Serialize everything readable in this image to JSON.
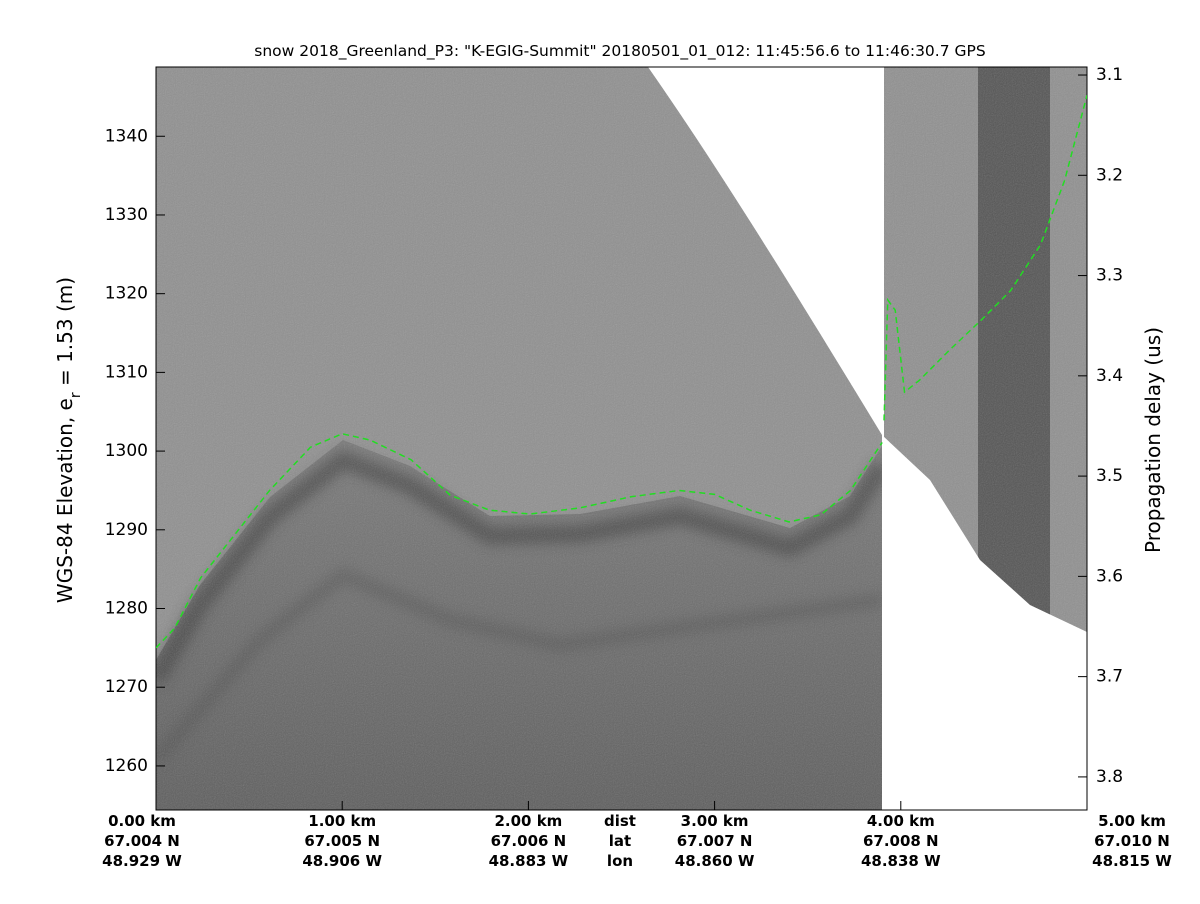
{
  "chart_data": {
    "type": "line",
    "title": "snow 2018_Greenland_P3: \"K-EGIG-Summit\"  20180501_01_012: 11:45:56.6 to 11:46:30.7 GPS",
    "ylabel_main": "WGS-84 Elevation, e",
    "ylabel_sub": "r",
    "ylabel_end": " = 1.53 (m)",
    "y2label": "Propagation delay (us)",
    "xlim": [
      0,
      5
    ],
    "xticks": [
      {
        "value": 0,
        "label": "0.00 km"
      },
      {
        "value": 1,
        "label": "1.00 km"
      },
      {
        "value": 2,
        "label": "2.00 km"
      },
      {
        "value": 3,
        "label": "3.00 km"
      },
      {
        "value": 4,
        "label": "4.00 km"
      },
      {
        "value": 5,
        "label": "5.00 km"
      }
    ],
    "lat_labels": [
      "67.004 N",
      "67.005 N",
      "67.006 N",
      "67.007 N",
      "67.008 N",
      "67.010 N"
    ],
    "lon_labels": [
      "48.929 W",
      "48.906 W",
      "48.883 W",
      "48.860 W",
      "48.838 W",
      "48.815 W"
    ],
    "row_names": [
      "dist",
      "lat",
      "lon"
    ],
    "ylim": [
      1254.4,
      1348.8
    ],
    "yticks": [
      1260,
      1270,
      1280,
      1290,
      1300,
      1310,
      1320,
      1330,
      1340
    ],
    "y2lim": [
      3.092,
      3.833
    ],
    "y2_reversed": true,
    "y2ticks": [
      3.1,
      3.2,
      3.3,
      3.4,
      3.5,
      3.6,
      3.7,
      3.8
    ],
    "x": [
      0,
      0.1,
      0.24,
      0.4,
      0.61,
      0.83,
      1.0,
      1.15,
      1.37,
      1.58,
      1.79,
      2.01,
      2.28,
      2.55,
      2.81,
      3.0,
      3.19,
      3.4,
      3.57,
      3.73,
      3.9,
      3.905,
      3.91,
      3.93,
      3.97,
      4.02,
      4.1,
      4.26,
      4.43,
      4.59,
      4.75,
      4.88,
      5.0
    ],
    "series": [
      {
        "name": "surface",
        "color": "#22dd22",
        "values": [
          1275.0,
          1277.5,
          1283.9,
          1288.7,
          1295.0,
          1300.5,
          1302.2,
          1301.4,
          1298.9,
          1294.4,
          1292.5,
          1292.0,
          1292.8,
          1294.2,
          1295.0,
          1294.5,
          1292.5,
          1291.0,
          1291.9,
          1295.0,
          1301.1,
          null,
          1303.9,
          1319.2,
          1317.9,
          1307.5,
          1309.0,
          1312.8,
          1316.6,
          1320.4,
          1326.2,
          1334.4,
          1345.2
        ]
      }
    ]
  }
}
